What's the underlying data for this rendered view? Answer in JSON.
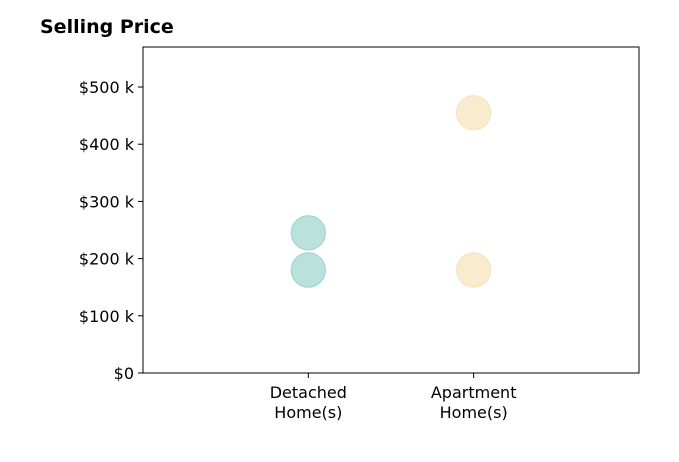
{
  "chart_data": {
    "type": "scatter",
    "title": "Selling Price",
    "xlabel": "",
    "ylabel": "",
    "categories": [
      [
        "Detached",
        "Home(s)"
      ],
      [
        "Apartment",
        "Home(s)"
      ]
    ],
    "y_ticks": [
      {
        "value": 0,
        "label": "$0"
      },
      {
        "value": 100000,
        "label": "$100 k"
      },
      {
        "value": 200000,
        "label": "$200 k"
      },
      {
        "value": 300000,
        "label": "$300 k"
      },
      {
        "value": 400000,
        "label": "$400 k"
      },
      {
        "value": 500000,
        "label": "$500 k"
      }
    ],
    "ylim": [
      0,
      570000
    ],
    "grid": false,
    "points": [
      {
        "category": 0,
        "y": 245000,
        "color": "#a8d8d4"
      },
      {
        "category": 0,
        "y": 180000,
        "color": "#a8d8d4"
      },
      {
        "category": 1,
        "y": 455000,
        "color": "#f6e6c2"
      },
      {
        "category": 1,
        "y": 180000,
        "color": "#f6e6c2"
      }
    ]
  }
}
